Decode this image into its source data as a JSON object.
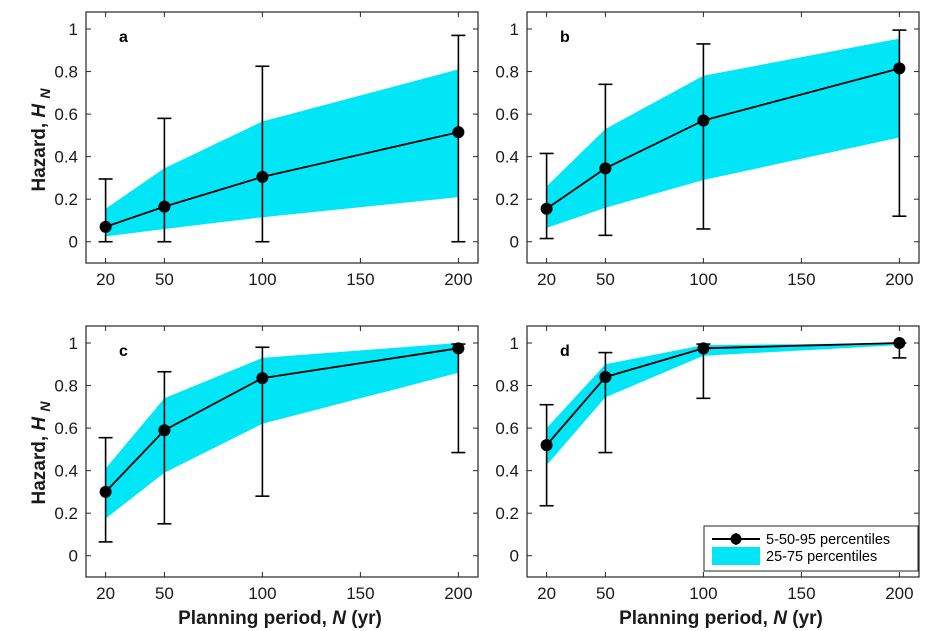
{
  "colors": {
    "band": "#00e6f6",
    "line": "#000000",
    "axis": "#262626"
  },
  "y_axis_label_prefix": "Hazard,",
  "y_axis_label_var": "H",
  "y_axis_label_sub": "N",
  "x_axis_label_prefix": "Planning period,",
  "x_axis_label_var": "N",
  "x_axis_label_suffix": "(yr)",
  "legend": {
    "line_label": "5-50-95 percentiles",
    "band_label": "25-75 percentiles"
  },
  "chart_data": [
    {
      "type": "line",
      "panel": "a",
      "x": [
        20,
        50,
        100,
        200
      ],
      "median": [
        0.07,
        0.165,
        0.305,
        0.515
      ],
      "p05": [
        0.0,
        0.0,
        0.0,
        0.0
      ],
      "p95": [
        0.295,
        0.58,
        0.825,
        0.97
      ],
      "p25": [
        0.025,
        0.06,
        0.115,
        0.21
      ],
      "p75": [
        0.155,
        0.345,
        0.565,
        0.81
      ],
      "xticks": [
        20,
        50,
        100,
        150,
        200
      ],
      "yticks": [
        0,
        0.2,
        0.4,
        0.6,
        0.8,
        1
      ],
      "ytick_labels": [
        "0",
        "0.2",
        "0.4",
        "0.6",
        "0.8",
        "1"
      ],
      "xlim": [
        10,
        210
      ],
      "ylim": [
        -0.1,
        1.08
      ]
    },
    {
      "type": "line",
      "panel": "b",
      "x": [
        20,
        50,
        100,
        200
      ],
      "median": [
        0.155,
        0.345,
        0.57,
        0.815
      ],
      "p05": [
        0.015,
        0.03,
        0.06,
        0.12
      ],
      "p95": [
        0.415,
        0.74,
        0.93,
        0.995
      ],
      "p25": [
        0.065,
        0.16,
        0.29,
        0.49
      ],
      "p75": [
        0.26,
        0.53,
        0.78,
        0.955
      ],
      "xticks": [
        20,
        50,
        100,
        150,
        200
      ],
      "yticks": [
        0,
        0.2,
        0.4,
        0.6,
        0.8,
        1
      ],
      "ytick_labels": [
        "0",
        "0.2",
        "0.4",
        "0.6",
        "0.8",
        "1"
      ],
      "xlim": [
        10,
        210
      ],
      "ylim": [
        -0.1,
        1.08
      ]
    },
    {
      "type": "line",
      "panel": "c",
      "x": [
        20,
        50,
        100,
        200
      ],
      "median": [
        0.3,
        0.59,
        0.835,
        0.975
      ],
      "p05": [
        0.065,
        0.15,
        0.28,
        0.485
      ],
      "p95": [
        0.555,
        0.865,
        0.98,
        0.995
      ],
      "p25": [
        0.175,
        0.39,
        0.62,
        0.86
      ],
      "p75": [
        0.41,
        0.74,
        0.93,
        1.0
      ],
      "xticks": [
        20,
        50,
        100,
        150,
        200
      ],
      "yticks": [
        0,
        0.2,
        0.4,
        0.6,
        0.8,
        1
      ],
      "ytick_labels": [
        "0",
        "0.2",
        "0.4",
        "0.6",
        "0.8",
        "1"
      ],
      "xlim": [
        10,
        210
      ],
      "ylim": [
        -0.1,
        1.08
      ]
    },
    {
      "type": "line",
      "panel": "d",
      "x": [
        20,
        50,
        100,
        200
      ],
      "median": [
        0.52,
        0.84,
        0.975,
        1.0
      ],
      "p05": [
        0.235,
        0.485,
        0.74,
        0.93
      ],
      "p95": [
        0.71,
        0.955,
        0.995,
        1.0
      ],
      "p25": [
        0.425,
        0.745,
        0.94,
        0.99
      ],
      "p75": [
        0.6,
        0.9,
        0.99,
        1.0
      ],
      "xticks": [
        20,
        50,
        100,
        150,
        200
      ],
      "yticks": [
        0,
        0.2,
        0.4,
        0.6,
        0.8,
        1
      ],
      "ytick_labels": [
        "0",
        "0.2",
        "0.4",
        "0.6",
        "0.8",
        "1"
      ],
      "xlim": [
        10,
        210
      ],
      "ylim": [
        -0.1,
        1.08
      ]
    }
  ]
}
